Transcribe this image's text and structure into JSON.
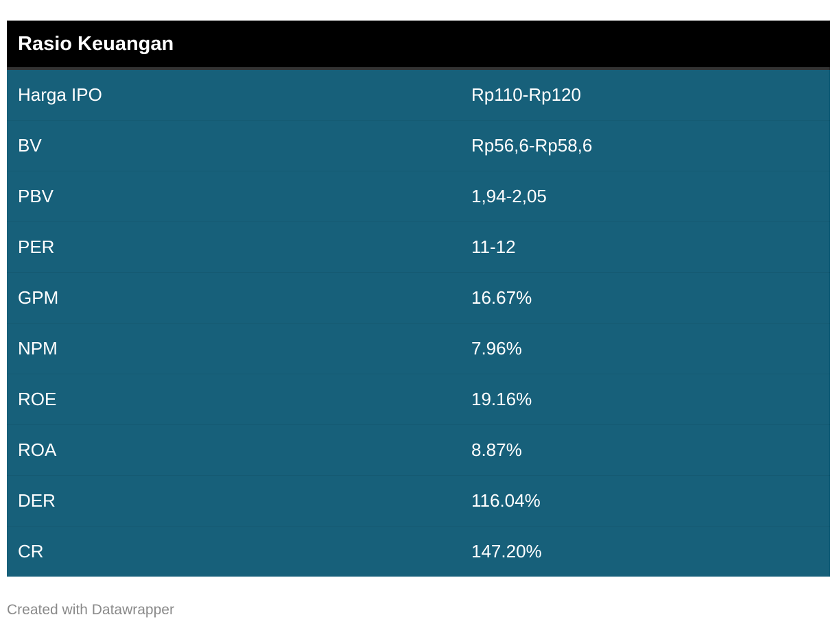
{
  "chart_data": {
    "type": "table",
    "title": "Rasio Keuangan",
    "rows": [
      {
        "label": "Harga IPO",
        "value": "Rp110-Rp120"
      },
      {
        "label": "BV",
        "value": "Rp56,6-Rp58,6"
      },
      {
        "label": "PBV",
        "value": "1,94-2,05"
      },
      {
        "label": "PER",
        "value": "11-12"
      },
      {
        "label": "GPM",
        "value": "16.67%"
      },
      {
        "label": "NPM",
        "value": "7.96%"
      },
      {
        "label": "ROE",
        "value": "19.16%"
      },
      {
        "label": "ROA",
        "value": "8.87%"
      },
      {
        "label": "DER",
        "value": "116.04%"
      },
      {
        "label": "CR",
        "value": "147.20%"
      }
    ]
  },
  "footer": {
    "credit": "Created with Datawrapper"
  },
  "colors": {
    "header_bg": "#000000",
    "row_bg": "#17607a",
    "text": "#ffffff",
    "credit_text": "#8a8a8a"
  }
}
